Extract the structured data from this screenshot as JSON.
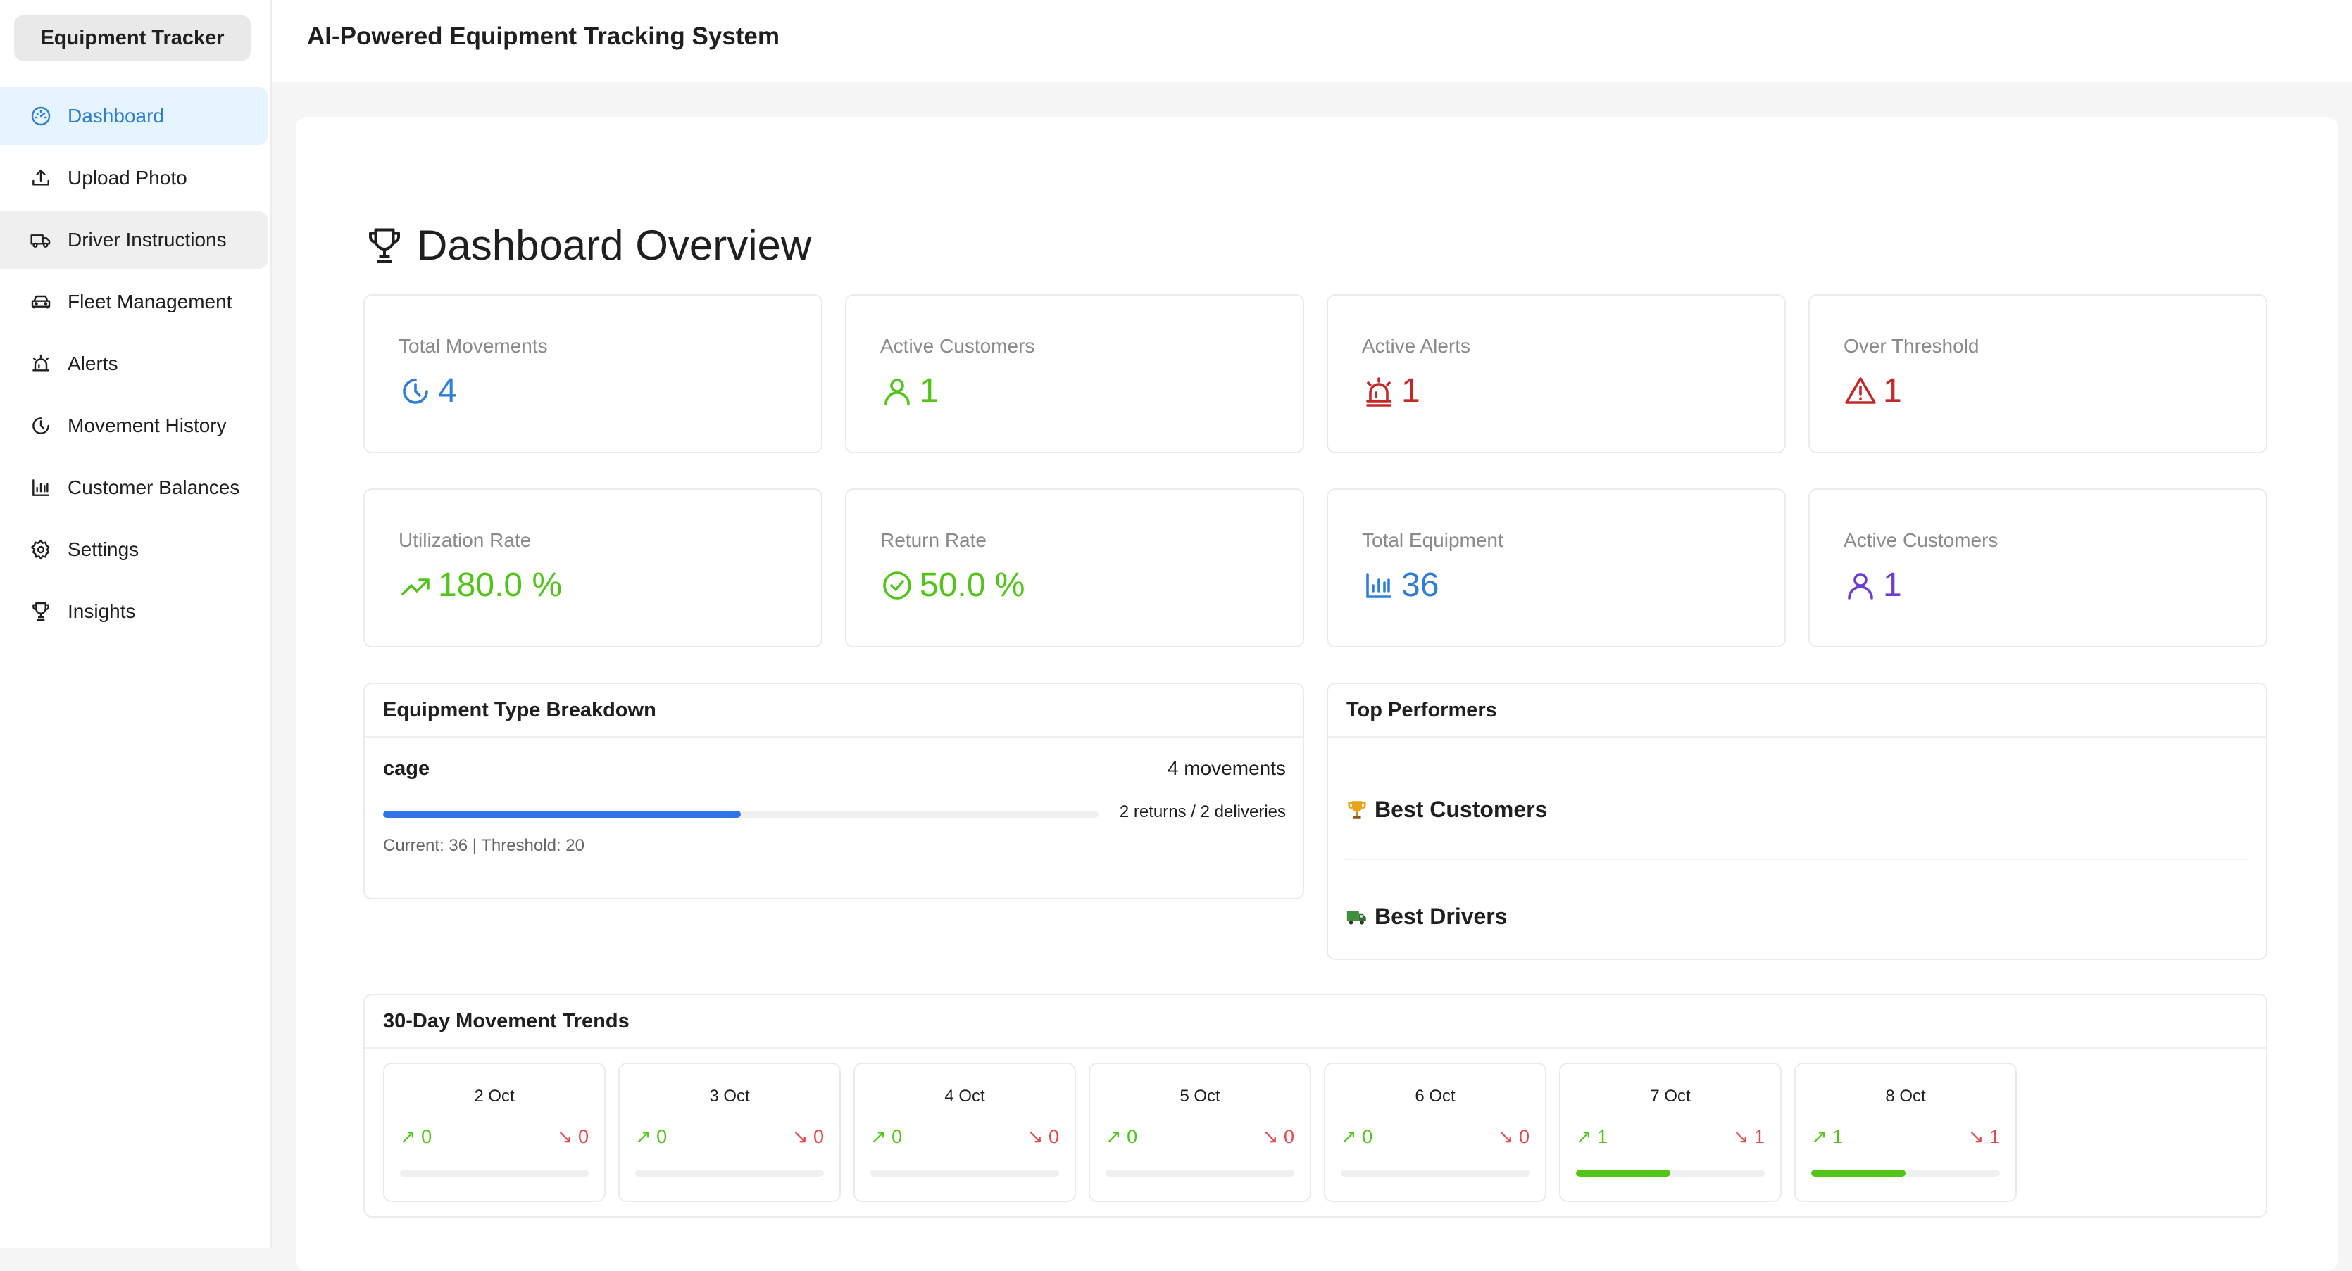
{
  "app": {
    "logo": "Equipment Tracker",
    "header_title": "AI-Powered Equipment Tracking System"
  },
  "sidebar": {
    "items": [
      {
        "label": "Dashboard",
        "icon": "dashboard-icon",
        "active": true
      },
      {
        "label": "Upload Photo",
        "icon": "upload-icon"
      },
      {
        "label": "Driver Instructions",
        "icon": "truck-icon",
        "hover": true
      },
      {
        "label": "Fleet Management",
        "icon": "car-icon"
      },
      {
        "label": "Alerts",
        "icon": "alarm-icon"
      },
      {
        "label": "Movement History",
        "icon": "history-icon"
      },
      {
        "label": "Customer Balances",
        "icon": "bar-chart-icon"
      },
      {
        "label": "Settings",
        "icon": "gear-icon"
      },
      {
        "label": "Insights",
        "icon": "trophy-icon"
      }
    ]
  },
  "dashboard": {
    "title": "Dashboard Overview",
    "stats_row1": [
      {
        "label": "Total Movements",
        "value": "4",
        "icon": "clock-icon",
        "color": "#2f7fd8"
      },
      {
        "label": "Active Customers",
        "value": "1",
        "icon": "user-icon",
        "color": "#52c41a"
      },
      {
        "label": "Active Alerts",
        "value": "1",
        "icon": "alarm-icon",
        "color": "#c62828"
      },
      {
        "label": "Over Threshold",
        "value": "1",
        "icon": "warning-icon",
        "color": "#c62828"
      }
    ],
    "stats_row2": [
      {
        "label": "Utilization Rate",
        "value": "180.0",
        "suffix": " %",
        "icon": "trend-up-icon",
        "color": "#52c41a"
      },
      {
        "label": "Return Rate",
        "value": "50.0",
        "suffix": " %",
        "icon": "check-circle-icon",
        "color": "#52c41a"
      },
      {
        "label": "Total Equipment",
        "value": "36",
        "icon": "bar-chart-icon",
        "color": "#2f7fd8"
      },
      {
        "label": "Active Customers",
        "value": "1",
        "icon": "user-icon",
        "color": "#6b3fd4"
      }
    ]
  },
  "equipment": {
    "title": "Equipment Type Breakdown",
    "items": [
      {
        "name": "cage",
        "movements": "4 movements",
        "ratio": "2 returns / 2 deliveries",
        "sub": "Current: 36 | Threshold: 20",
        "progress": 0.5
      }
    ]
  },
  "performers": {
    "title": "Top Performers",
    "best_customers": "Best Customers",
    "best_drivers": "Best Drivers"
  },
  "trends": {
    "title": "30-Day Movement Trends",
    "days": [
      {
        "label": "2 Oct",
        "up": "0",
        "down": "0",
        "fill": 0
      },
      {
        "label": "3 Oct",
        "up": "0",
        "down": "0",
        "fill": 0
      },
      {
        "label": "4 Oct",
        "up": "0",
        "down": "0",
        "fill": 0
      },
      {
        "label": "5 Oct",
        "up": "0",
        "down": "0",
        "fill": 0
      },
      {
        "label": "6 Oct",
        "up": "0",
        "down": "0",
        "fill": 0
      },
      {
        "label": "7 Oct",
        "up": "1",
        "down": "1",
        "fill": 0.5
      },
      {
        "label": "8 Oct",
        "up": "1",
        "down": "1",
        "fill": 0.5
      }
    ]
  }
}
